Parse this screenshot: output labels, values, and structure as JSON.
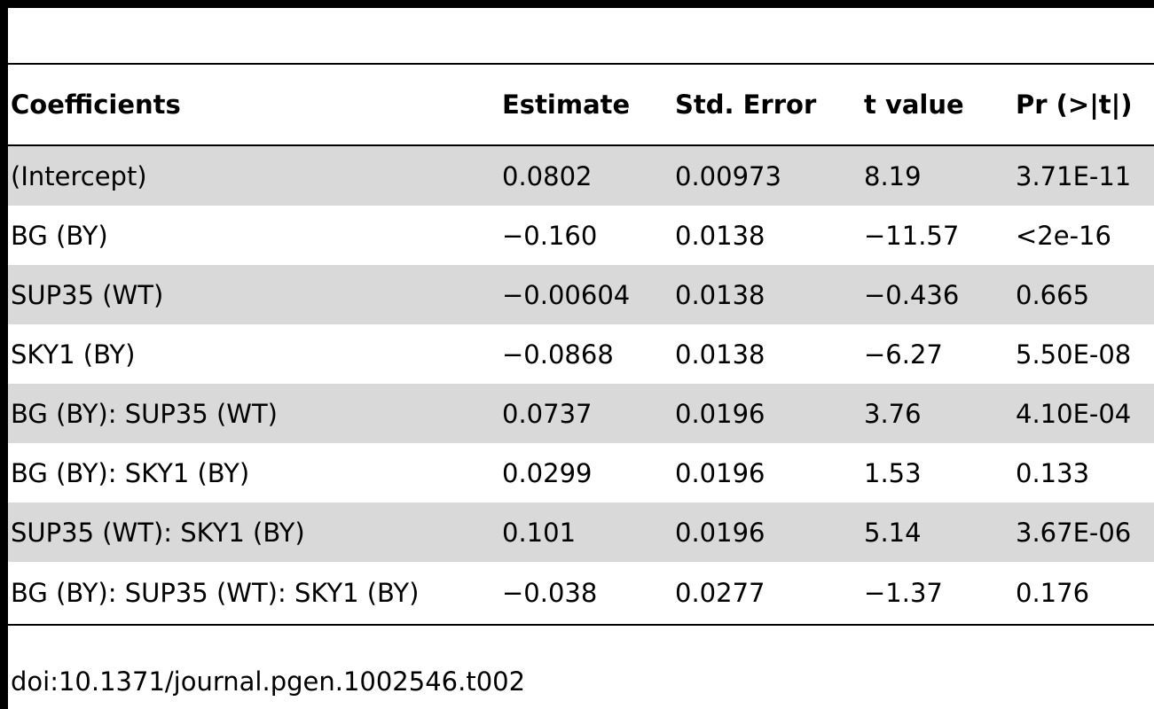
{
  "table": {
    "headers": [
      "Coefficients",
      "Estimate",
      "Std. Error",
      "t value",
      "Pr (>|t|)"
    ],
    "rows": [
      [
        "(Intercept)",
        "0.0802",
        "0.00973",
        "8.19",
        "3.71E-11"
      ],
      [
        "BG (BY)",
        "−0.160",
        "0.0138",
        "−11.57",
        "<2e-16"
      ],
      [
        "SUP35 (WT)",
        "−0.00604",
        "0.0138",
        "−0.436",
        "0.665"
      ],
      [
        "SKY1 (BY)",
        "−0.0868",
        "0.0138",
        "−6.27",
        "5.50E-08"
      ],
      [
        "BG (BY): SUP35 (WT)",
        "0.0737",
        "0.0196",
        "3.76",
        "4.10E-04"
      ],
      [
        "BG (BY): SKY1 (BY)",
        "0.0299",
        "0.0196",
        "1.53",
        "0.133"
      ],
      [
        "SUP35 (WT): SKY1 (BY)",
        "0.101",
        "0.0196",
        "5.14",
        "3.67E-06"
      ],
      [
        "BG (BY): SUP35 (WT): SKY1 (BY)",
        "−0.038",
        "0.0277",
        "−1.37",
        "0.176"
      ]
    ]
  },
  "footer": {
    "doi": "doi:10.1371/journal.pgen.1002546.t002"
  }
}
